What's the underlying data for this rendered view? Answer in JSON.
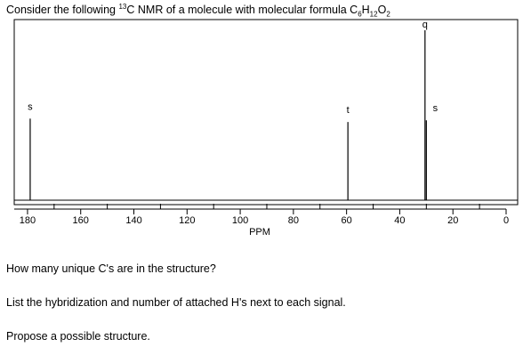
{
  "question": {
    "title_prefix": "Consider the following ",
    "title_isotope": "13",
    "title_middle": "C NMR of a molecule with molecular formula C",
    "title_c_count": "6",
    "title_h": "H",
    "title_h_count": "12",
    "title_o": "O",
    "title_o_count": "2",
    "unique_carbons": "How many unique C's are in the structure?",
    "hybridization": "List the hybridization and number of attached H's next to each signal.",
    "structure": "Propose a possible structure."
  },
  "chart_data": {
    "type": "bar",
    "xlabel": "PPM",
    "xlim": [
      180,
      0
    ],
    "xlim_display": [
      185,
      0
    ],
    "ylim": [
      0,
      1
    ],
    "x_ticks": [
      180,
      160,
      140,
      120,
      100,
      80,
      60,
      40,
      20,
      0
    ],
    "x_tick_labels": [
      "180",
      "160",
      "140",
      "120",
      "100",
      "80",
      "60",
      "40",
      "20",
      "0"
    ],
    "grid": false,
    "peaks": [
      {
        "ppm": 179,
        "height": 0.48,
        "label": "s"
      },
      {
        "ppm": 59.5,
        "height": 0.46,
        "label": "t"
      },
      {
        "ppm": 30.5,
        "height": 1.0,
        "label": "q"
      },
      {
        "ppm": 30.0,
        "height": 0.47,
        "label": "s"
      }
    ]
  }
}
